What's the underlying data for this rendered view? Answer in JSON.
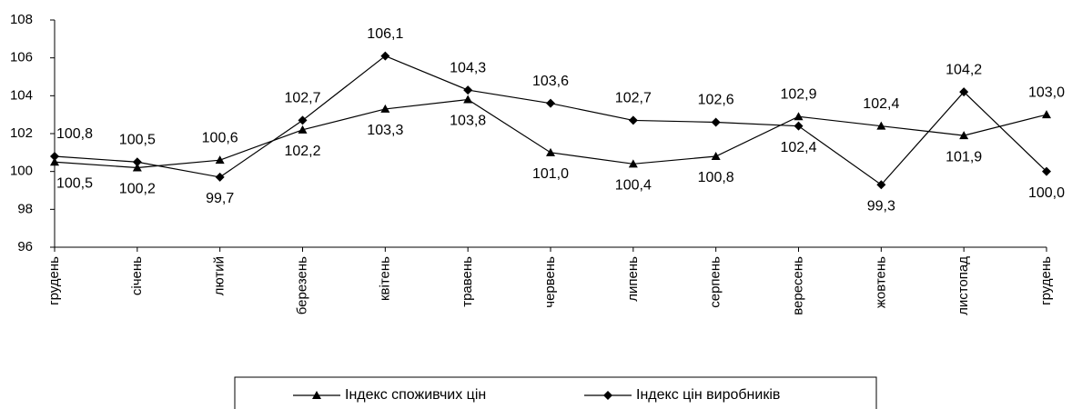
{
  "chart_data": {
    "type": "line",
    "categories": [
      "грудень",
      "січень",
      "лютий",
      "березень",
      "квітень",
      "травень",
      "червень",
      "липень",
      "серпень",
      "вересень",
      "жовтень",
      "листопад",
      "грудень"
    ],
    "series": [
      {
        "name": "Індекс споживчих цін",
        "color": "#000000",
        "marker": "triangle",
        "values": [
          100.5,
          100.2,
          100.6,
          102.2,
          103.3,
          103.8,
          101.0,
          100.4,
          100.8,
          102.9,
          102.4,
          101.9,
          103.0
        ],
        "value_labels": [
          "100,5",
          "100,2",
          "100,6",
          "102,2",
          "103,3",
          "103,8",
          "101,0",
          "100,4",
          "100,8",
          "102,9",
          "102,4",
          "101,9",
          "103,0"
        ]
      },
      {
        "name": "Індекс цін виробників",
        "color": "#000000",
        "marker": "diamond",
        "values": [
          100.8,
          100.5,
          99.7,
          102.7,
          106.1,
          104.3,
          103.6,
          102.7,
          102.6,
          102.4,
          99.3,
          104.2,
          100.0
        ],
        "value_labels": [
          "100,8",
          "100,5",
          "99,7",
          "102,7",
          "106,1",
          "104,3",
          "103,6",
          "102,7",
          "102,6",
          "102,4",
          "99,3",
          "104,2",
          "100,0"
        ]
      }
    ],
    "ylim": [
      96,
      108
    ],
    "yticks": [
      96,
      98,
      100,
      102,
      104,
      106,
      108
    ],
    "grid": false,
    "legend": "bottom"
  }
}
